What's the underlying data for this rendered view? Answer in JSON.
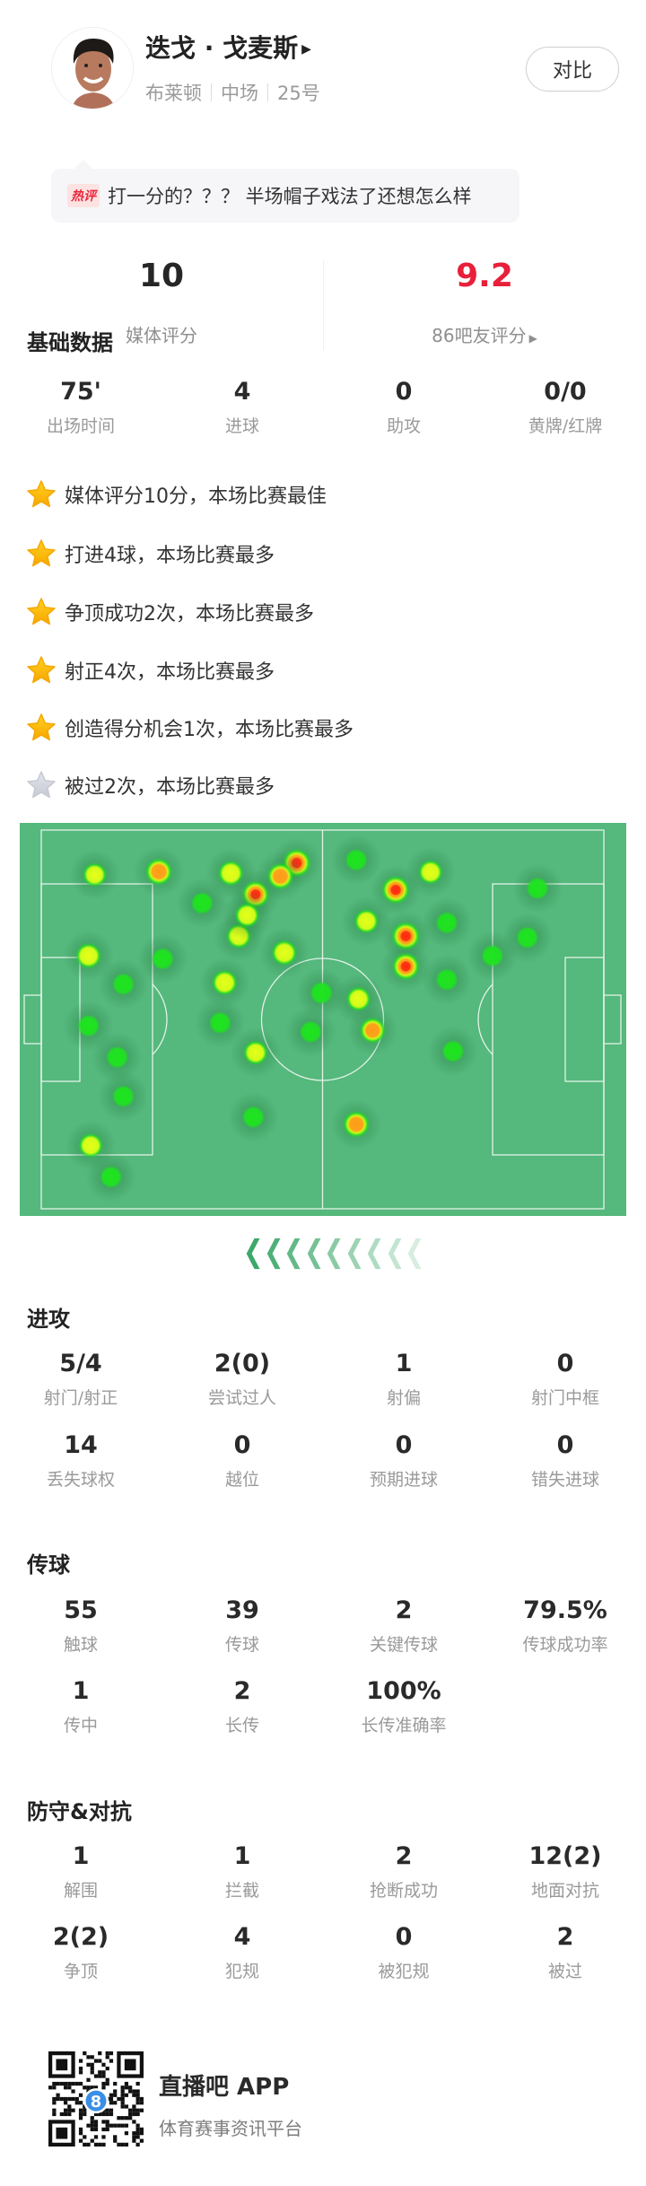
{
  "player": {
    "name": "迭戈 · 戈麦斯",
    "team": "布莱顿",
    "position": "中场",
    "number": "25号",
    "compare_label": "对比"
  },
  "hot_comment": {
    "tag": "热评",
    "text": "打一分的？？？ 半场帽子戏法了还想怎么样"
  },
  "ratings": {
    "media": {
      "value": "10",
      "label": "媒体评分"
    },
    "fans": {
      "value": "9.2",
      "label": "86吧友评分",
      "color": "#e8203a"
    }
  },
  "basic": {
    "title": "基础数据",
    "stats": [
      {
        "value": "75'",
        "label": "出场时间"
      },
      {
        "value": "4",
        "label": "进球"
      },
      {
        "value": "0",
        "label": "助攻"
      },
      {
        "value": "0/0",
        "label": "黄牌/红牌"
      }
    ]
  },
  "highlights": [
    {
      "text": "媒体评分10分，本场比赛最佳",
      "star": "gold"
    },
    {
      "text": "打进4球，本场比赛最多",
      "star": "gold"
    },
    {
      "text": "争顶成功2次，本场比赛最多",
      "star": "gold"
    },
    {
      "text": "射正4次，本场比赛最多",
      "star": "gold"
    },
    {
      "text": "创造得分机会1次，本场比赛最多",
      "star": "gold"
    },
    {
      "text": "被过2次，本场比赛最多",
      "star": "grey"
    }
  ],
  "heatmap": {
    "pitch_color": "#55b87c",
    "attack_direction": "left",
    "points": [
      [
        9.5,
        11.8,
        0.45
      ],
      [
        20.9,
        11.0,
        0.75
      ],
      [
        33.7,
        11.4,
        0.6
      ],
      [
        38.1,
        17.0,
        0.8
      ],
      [
        45.4,
        8.7,
        0.9
      ],
      [
        42.5,
        12.2,
        0.7
      ],
      [
        28.6,
        19.3,
        0.25
      ],
      [
        35.1,
        28.0,
        0.55
      ],
      [
        43.2,
        32.4,
        0.6
      ],
      [
        36.6,
        22.5,
        0.5
      ],
      [
        8.4,
        33.2,
        0.6
      ],
      [
        21.6,
        34.0,
        0.25
      ],
      [
        14.6,
        40.7,
        0.25
      ],
      [
        32.6,
        40.3,
        0.6
      ],
      [
        8.4,
        51.7,
        0.25
      ],
      [
        31.8,
        50.9,
        0.25
      ],
      [
        13.5,
        60.0,
        0.25
      ],
      [
        38.1,
        58.8,
        0.5
      ],
      [
        14.6,
        70.3,
        0.25
      ],
      [
        37.7,
        75.8,
        0.25
      ],
      [
        8.8,
        83.3,
        0.5
      ],
      [
        12.4,
        91.6,
        0.25
      ],
      [
        56.0,
        7.9,
        0.25
      ],
      [
        63.0,
        15.8,
        0.85
      ],
      [
        69.2,
        11.1,
        0.5
      ],
      [
        57.8,
        24.1,
        0.5
      ],
      [
        64.8,
        28.0,
        0.9
      ],
      [
        64.8,
        36.0,
        0.8
      ],
      [
        72.1,
        24.5,
        0.25
      ],
      [
        72.1,
        39.5,
        0.25
      ],
      [
        86.4,
        28.4,
        0.25
      ],
      [
        88.2,
        15.4,
        0.25
      ],
      [
        80.2,
        33.2,
        0.25
      ],
      [
        49.8,
        43.0,
        0.3
      ],
      [
        56.4,
        44.6,
        0.5
      ],
      [
        58.9,
        52.9,
        0.65
      ],
      [
        47.9,
        53.3,
        0.25
      ],
      [
        73.2,
        58.4,
        0.25
      ],
      [
        56.0,
        77.7,
        0.7
      ]
    ]
  },
  "attack": {
    "title": "进攻",
    "stats": [
      {
        "value": "5/4",
        "label": "射门/射正"
      },
      {
        "value": "2(0)",
        "label": "尝试过人"
      },
      {
        "value": "1",
        "label": "射偏"
      },
      {
        "value": "0",
        "label": "射门中框"
      },
      {
        "value": "14",
        "label": "丢失球权"
      },
      {
        "value": "0",
        "label": "越位"
      },
      {
        "value": "0",
        "label": "预期进球"
      },
      {
        "value": "0",
        "label": "错失进球"
      }
    ]
  },
  "passing": {
    "title": "传球",
    "stats": [
      {
        "value": "55",
        "label": "触球"
      },
      {
        "value": "39",
        "label": "传球"
      },
      {
        "value": "2",
        "label": "关键传球"
      },
      {
        "value": "79.5%",
        "label": "传球成功率"
      },
      {
        "value": "1",
        "label": "传中"
      },
      {
        "value": "2",
        "label": "长传"
      },
      {
        "value": "100%",
        "label": "长传准确率"
      }
    ]
  },
  "defense": {
    "title": "防守&对抗",
    "stats": [
      {
        "value": "1",
        "label": "解围"
      },
      {
        "value": "1",
        "label": "拦截"
      },
      {
        "value": "2",
        "label": "抢断成功"
      },
      {
        "value": "12(2)",
        "label": "地面对抗"
      },
      {
        "value": "2(2)",
        "label": "争顶"
      },
      {
        "value": "4",
        "label": "犯规"
      },
      {
        "value": "0",
        "label": "被犯规"
      },
      {
        "value": "2",
        "label": "被过"
      }
    ]
  },
  "footer": {
    "app_name": "直播吧 APP",
    "tagline": "体育赛事资讯平台",
    "qr_badge": "8"
  }
}
